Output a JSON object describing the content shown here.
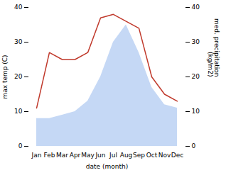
{
  "chart_data": {
    "type": "line",
    "xlabel": "date (month)",
    "ylabel": "max temp (C)",
    "y2label": "med. precipitation\n(kg/m2)",
    "categories": [
      "Jan",
      "Feb",
      "Mar",
      "Apr",
      "May",
      "Jun",
      "Jul",
      "Aug",
      "Sep",
      "Oct",
      "Nov",
      "Dec"
    ],
    "series": [
      {
        "type": "area",
        "color": "#c5d8f5",
        "values": [
          8,
          8,
          9,
          10,
          13,
          20,
          30,
          35,
          27,
          17,
          12,
          11
        ]
      },
      {
        "type": "line",
        "color": "#c0392b",
        "axis": "y2",
        "values": [
          11,
          27,
          25,
          25,
          27,
          37,
          38,
          36,
          34,
          20,
          15,
          13
        ]
      }
    ],
    "ylim": [
      0,
      40
    ],
    "yticks": [
      0,
      10,
      20,
      30,
      40
    ],
    "y2lim": [
      0,
      40
    ],
    "y2ticks": [
      0,
      10,
      20,
      30,
      40
    ],
    "grid": false
  }
}
